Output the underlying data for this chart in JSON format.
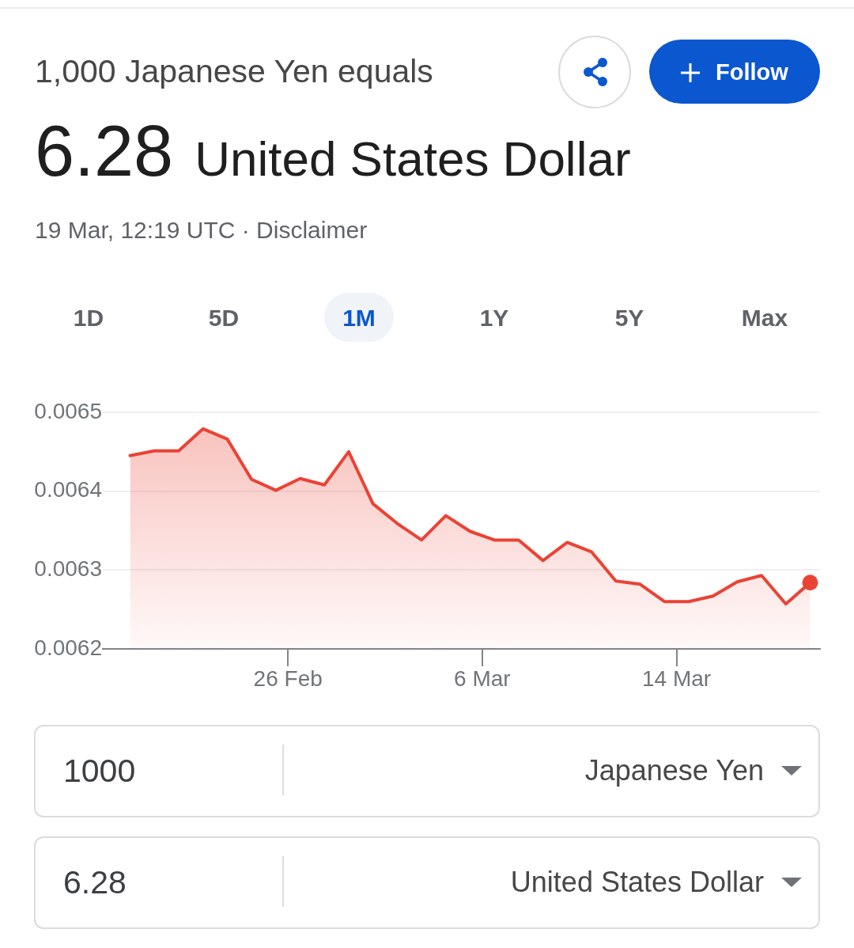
{
  "chart_data": {
    "type": "area",
    "title": "1,000 Japanese Yen equals",
    "subtitle": "6.28 United States Dollar",
    "annotations": [
      "Follow",
      "19 Mar, 12:19 UTC · Disclaimer",
      "1D",
      "5D",
      "1M",
      "1Y",
      "5Y",
      "Max",
      "1000",
      "Japanese Yen",
      "6.28",
      "United States Dollar"
    ],
    "x": [
      "--02-19T12:00",
      "--02-20T12:00",
      "--02-21T12:00",
      "--02-22T12:00",
      "--02-23T12:00",
      "--02-24T12:00",
      "--02-25T12:00",
      "--02-26T12:00",
      "--02-27T12:00",
      "--02-28T12:00",
      "--03-01T12:00",
      "--03-02T12:00",
      "--03-03T12:00",
      "--03-04T12:00",
      "--03-05T12:00",
      "--03-06T12:00",
      "--03-07T12:00",
      "--03-08T12:00",
      "--03-09T12:00",
      "--03-10T12:00",
      "--03-11T12:00",
      "--03-12T12:00",
      "--03-13T12:00",
      "--03-14T12:00",
      "--03-15T12:00",
      "--03-16T12:00",
      "--03-17T12:00",
      "--03-18T12:00",
      "--03-19T12:00"
    ],
    "series": [
      {
        "color": "#ea4335",
        "values": [
          0.006445,
          0.006451,
          0.006451,
          0.006479,
          0.006466,
          0.006415,
          0.006401,
          0.006416,
          0.006408,
          0.00645,
          0.006384,
          0.006359,
          0.006338,
          0.006369,
          0.006349,
          0.006338,
          0.006338,
          0.006312,
          0.006335,
          0.006323,
          0.006286,
          0.006282,
          0.00626,
          0.00626,
          0.006267,
          0.006285,
          0.006293,
          0.006257,
          0.006284
        ]
      },
      {
        "type": "scatter",
        "color": "#ea4335",
        "marker": "circle",
        "x": [
          "--03-19T12:00"
        ],
        "values": [
          0.006284
        ]
      }
    ],
    "xlim": [
      "--02-18T09:00",
      "--03-19T21:45"
    ],
    "xticks": [
      {
        "value": "--02-26",
        "label": "26 Feb"
      },
      {
        "value": "--03-06",
        "label": "6 Mar"
      },
      {
        "value": "--03-14",
        "label": "14 Mar"
      }
    ],
    "ylim": [
      0.0062,
      0.0065
    ],
    "yticks": [
      0.0062,
      0.0063,
      0.0064,
      0.0065
    ],
    "grid": "y"
  }
}
